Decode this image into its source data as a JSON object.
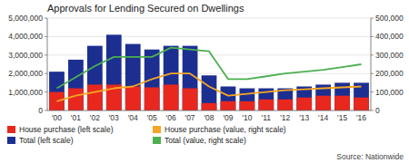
{
  "chart_data": {
    "type": "bar",
    "title": "Approvals for Lending Secured on Dwellings",
    "categories": [
      "'00",
      "'01",
      "'02",
      "'03",
      "'04",
      "'05",
      "'06",
      "'07",
      "'08",
      "'09",
      "'10",
      "'11",
      "'12",
      "'13",
      "'14",
      "'15",
      "'16"
    ],
    "series": [
      {
        "name": "House purchase (left scale)",
        "type": "bar",
        "color": "#e8281e",
        "values": [
          1000000,
          1200000,
          1400000,
          1400000,
          1300000,
          1250000,
          1400000,
          1200000,
          400000,
          500000,
          500000,
          600000,
          600000,
          700000,
          800000,
          800000,
          700000
        ]
      },
      {
        "name": "Total (left scale)",
        "type": "bar",
        "color": "#1c2f91",
        "values": [
          2100000,
          2750000,
          3500000,
          4100000,
          3600000,
          3300000,
          3500000,
          3500000,
          1900000,
          1300000,
          1200000,
          1200000,
          1200000,
          1300000,
          1400000,
          1500000,
          1500000
        ]
      },
      {
        "name": "House purchase (value, right scale)",
        "type": "line",
        "axis": "y2",
        "color": "#f5a623",
        "values": [
          50000,
          80000,
          100000,
          120000,
          130000,
          170000,
          200000,
          200000,
          130000,
          80000,
          90000,
          100000,
          110000,
          115000,
          120000,
          125000,
          130000
        ]
      },
      {
        "name": "Total (value, right scale)",
        "type": "line",
        "axis": "y2",
        "color": "#4caf50",
        "values": [
          120000,
          180000,
          240000,
          290000,
          290000,
          290000,
          340000,
          330000,
          320000,
          170000,
          170000,
          185000,
          200000,
          210000,
          220000,
          235000,
          250000
        ]
      }
    ],
    "stacked": false,
    "ylim": [
      0,
      5000000
    ],
    "yticks": [
      0,
      {
        "value": 1000000,
        "label": "1,000,000"
      },
      {
        "value": 2000000,
        "label": "2,000,000"
      },
      {
        "value": 3000000,
        "label": "3,000,000"
      },
      {
        "value": 4000000,
        "label": "4,000,000"
      },
      {
        "value": 5000000,
        "label": "5,000,000"
      }
    ],
    "y2lim": [
      0,
      500000
    ],
    "y2ticks": [
      0,
      {
        "value": 100000,
        "label": "100,000"
      },
      {
        "value": 200000,
        "label": "200,000"
      },
      {
        "value": 300000,
        "label": "300,000"
      },
      {
        "value": 400000,
        "label": "400,000"
      },
      {
        "value": 500000,
        "label": "500,000"
      }
    ],
    "grid": true,
    "legend": "bottom",
    "annotations": [
      "Source: Nationwide"
    ]
  }
}
